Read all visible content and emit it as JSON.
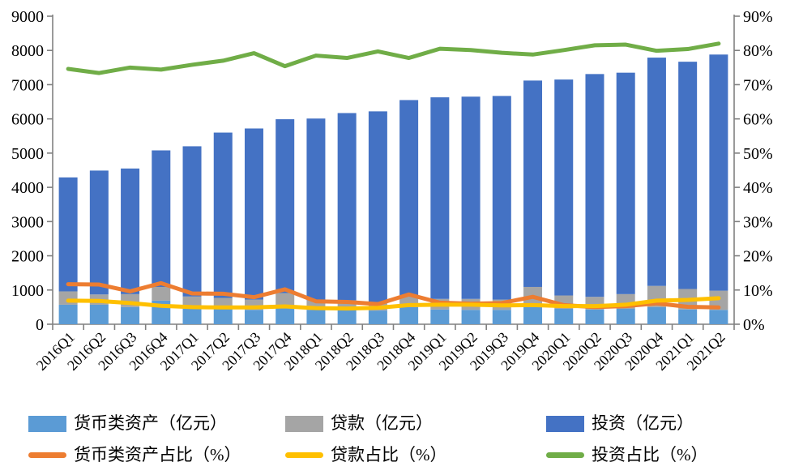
{
  "chart_data": {
    "type": "combo-stacked-bar-line",
    "title": "",
    "grid": false,
    "legend_position": "bottom",
    "categories": [
      "2016Q1",
      "2016Q2",
      "2016Q3",
      "2016Q4",
      "2017Q1",
      "2017Q2",
      "2017Q3",
      "2017Q4",
      "2018Q1",
      "2018Q2",
      "2018Q3",
      "2018Q4",
      "2019Q1",
      "2019Q2",
      "2019Q3",
      "2019Q4",
      "2020Q1",
      "2020Q2",
      "2020Q3",
      "2020Q4",
      "2021Q1",
      "2021Q2"
    ],
    "left_axis": {
      "min": 0,
      "max": 9000,
      "step": 1000,
      "tick_labels": [
        "0",
        "1000",
        "2000",
        "3000",
        "4000",
        "5000",
        "6000",
        "7000",
        "8000",
        "9000"
      ]
    },
    "right_axis": {
      "min": 0,
      "max": 90,
      "step": 10,
      "tick_labels": [
        "0%",
        "10%",
        "20%",
        "30%",
        "40%",
        "50%",
        "60%",
        "70%",
        "80%",
        "90%"
      ]
    },
    "bar_series": [
      {
        "name": "货币类资产（亿元）",
        "color": "#5B9BD5",
        "values": [
          570,
          570,
          500,
          690,
          450,
          490,
          420,
          500,
          420,
          420,
          400,
          500,
          430,
          420,
          420,
          550,
          450,
          430,
          450,
          500,
          430,
          420
        ]
      },
      {
        "name": "贷款（亿元）",
        "color": "#A5A5A5",
        "values": [
          390,
          300,
          380,
          400,
          360,
          280,
          300,
          410,
          280,
          280,
          250,
          330,
          310,
          320,
          300,
          540,
          390,
          370,
          430,
          620,
          600,
          560
        ]
      },
      {
        "name": "投资（亿元）",
        "color": "#4472C4",
        "values": [
          3330,
          3620,
          3670,
          3990,
          4390,
          4830,
          5000,
          5080,
          5310,
          5470,
          5570,
          5720,
          5890,
          5910,
          5950,
          6030,
          6310,
          6510,
          6470,
          6670,
          6640,
          6900
        ]
      }
    ],
    "bar_totals": [
      4290,
      4490,
      4550,
      5080,
      5200,
      5600,
      5720,
      5990,
      6010,
      6170,
      6220,
      6550,
      6630,
      6650,
      6670,
      7120,
      7150,
      7310,
      7350,
      7790,
      7670,
      7880
    ],
    "line_series": [
      {
        "name": "货币类资产占比（%）",
        "color": "#ED7D31",
        "values": [
          11.7,
          11.6,
          9.6,
          12.0,
          9.0,
          8.9,
          7.9,
          10.2,
          6.7,
          6.5,
          5.9,
          8.7,
          6.3,
          6.0,
          6.2,
          8.0,
          5.6,
          5.0,
          5.3,
          6.1,
          5.1,
          4.9
        ]
      },
      {
        "name": "贷款占比（%）",
        "color": "#FFC000",
        "values": [
          6.9,
          6.8,
          6.2,
          5.4,
          5.0,
          4.9,
          4.9,
          5.2,
          4.7,
          4.6,
          4.8,
          5.6,
          5.7,
          5.7,
          5.5,
          5.6,
          5.3,
          5.3,
          5.7,
          6.9,
          7.1,
          7.6
        ]
      },
      {
        "name": "投资占比（%）",
        "color": "#70AD47",
        "values": [
          74.6,
          73.4,
          75.0,
          74.4,
          75.8,
          77.0,
          79.2,
          75.4,
          78.5,
          77.8,
          79.7,
          77.8,
          80.5,
          80.1,
          79.3,
          78.8,
          80.1,
          81.5,
          81.7,
          79.9,
          80.4,
          82.0
        ]
      }
    ],
    "axis_color": "#808080",
    "text_color": "#000000"
  }
}
